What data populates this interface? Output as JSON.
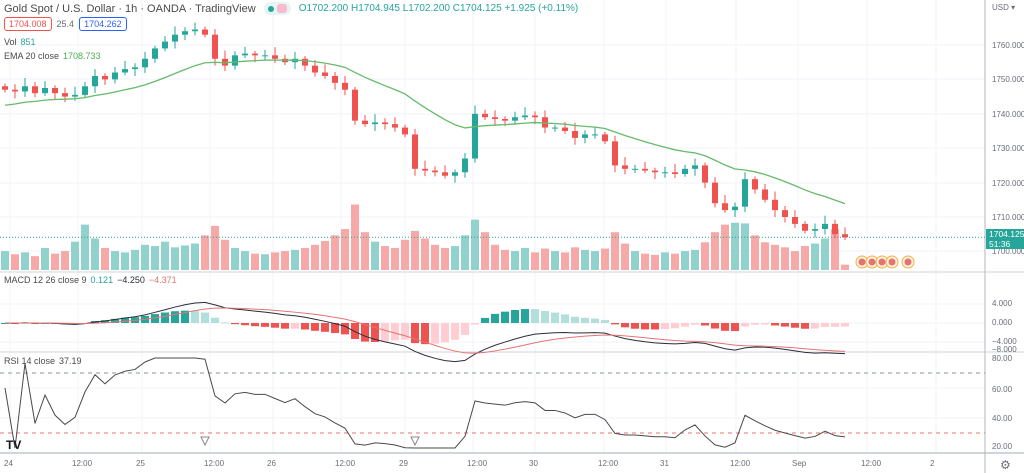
{
  "header": {
    "title": "Gold Spot / U.S. Dollar · 1h · OANDA · TradingView",
    "open": "O1702.200",
    "high": "H1704.945",
    "low": "L1702.200",
    "close": "C1704.125",
    "change": "+1.925 (+0.11%)",
    "bid": "1704.008",
    "spread": "25.4",
    "ask": "1704.262"
  },
  "legends": {
    "vol_label": "Vol",
    "vol_value": "851",
    "ema_label": "EMA 20 close",
    "ema_value": "1708.733",
    "macd_label": "MACD 12 26 close 9",
    "macd_hist": "0.121",
    "macd_line": "−4.250",
    "macd_signal": "−4.371",
    "rsi_label": "RSI 14 close",
    "rsi_value": "37.19"
  },
  "price_axis": {
    "currency": "USD ▾",
    "ticks": [
      "1760.000",
      "1750.000",
      "1740.000",
      "1730.000",
      "1720.000",
      "1710.000",
      "1700.000"
    ],
    "last_price": "1704.125",
    "countdown": "51:36"
  },
  "macd_axis": {
    "ticks": [
      "4.000",
      "0.000",
      "−4.000",
      "−8.000"
    ]
  },
  "rsi_axis": {
    "ticks": [
      "80.00",
      "60.00",
      "40.00",
      "20.00"
    ]
  },
  "time_axis": {
    "ticks": [
      "24",
      "12:00",
      "25",
      "12:00",
      "26",
      "12:00",
      "29",
      "12:00",
      "30",
      "12:00",
      "31",
      "12:00",
      "Sep",
      "12:00",
      "2"
    ]
  },
  "colors": {
    "up": "#26a69a",
    "down": "#ef5350",
    "ema": "#66bb6a",
    "macd": "#2a2e39",
    "signal": "#e57373",
    "rsi": "#4a4a4a"
  },
  "chart_data": {
    "type": "candlestick",
    "title": "Gold Spot / U.S. Dollar 1h",
    "ylim": [
      1695,
      1768
    ],
    "closes": [
      1747,
      1746.5,
      1748,
      1746,
      1747.5,
      1746,
      1745,
      1745.5,
      1748,
      1751,
      1750,
      1752,
      1753,
      1753.5,
      1756,
      1759,
      1761,
      1763,
      1764,
      1764.5,
      1763,
      1756,
      1754,
      1757,
      1757.5,
      1757,
      1757,
      1756,
      1755,
      1756,
      1754,
      1752,
      1751,
      1749,
      1747,
      1738,
      1737,
      1737.5,
      1737,
      1736,
      1734,
      1724,
      1723.5,
      1723,
      1722,
      1723,
      1727,
      1740,
      1739,
      1738.5,
      1738,
      1739,
      1739.5,
      1739,
      1736,
      1736,
      1735,
      1733,
      1734,
      1734,
      1732,
      1725,
      1724,
      1724,
      1723.5,
      1723,
      1723,
      1722.5,
      1724,
      1725,
      1720,
      1714,
      1712,
      1713,
      1721,
      1718,
      1715,
      1712,
      1710,
      1708,
      1706,
      1706.5,
      1708,
      1705,
      1704.125
    ],
    "volumes": [
      3000,
      2500,
      2800,
      2200,
      3500,
      2600,
      3000,
      4500,
      7200,
      5000,
      3500,
      3000,
      2800,
      3200,
      4000,
      3800,
      4500,
      3600,
      3900,
      4200,
      5500,
      7000,
      4800,
      3500,
      3000,
      2600,
      2500,
      2800,
      3000,
      3200,
      3500,
      4000,
      4600,
      5500,
      6500,
      10400,
      6000,
      4500,
      3800,
      3500,
      4800,
      6200,
      5000,
      4000,
      3500,
      3800,
      5500,
      8000,
      6000,
      4000,
      3200,
      3000,
      3500,
      2800,
      3400,
      3000,
      2800,
      3600,
      3200,
      3000,
      3400,
      6000,
      4200,
      3000,
      2600,
      2400,
      2800,
      2600,
      3000,
      3200,
      4400,
      6000,
      7200,
      7500,
      7400,
      5500,
      4400,
      4000,
      3600,
      3000,
      3800,
      4200,
      5000,
      6500,
      851
    ],
    "indicators": [
      "Volume",
      "EMA 20",
      "MACD 12 26 9",
      "RSI 14"
    ],
    "rsi_bands": [
      70,
      30
    ]
  }
}
